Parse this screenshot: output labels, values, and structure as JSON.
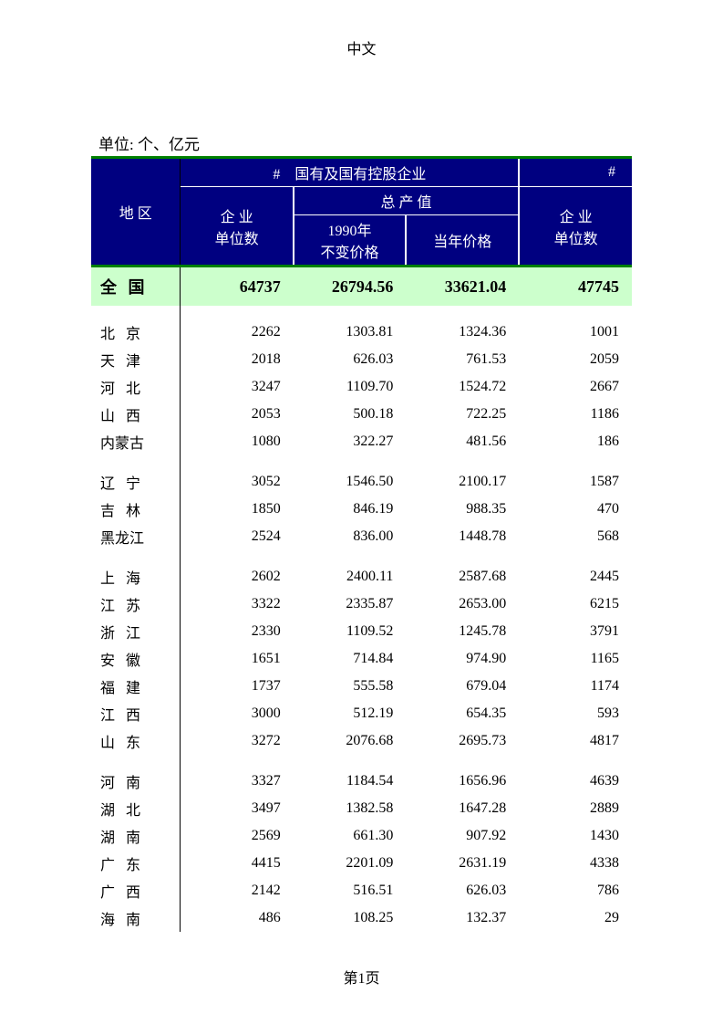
{
  "header": {
    "title": "中文"
  },
  "footer": {
    "pageNum": "第1页"
  },
  "table": {
    "unitLabel": "单位: 个、亿元",
    "colors": {
      "headerBg": "#000080",
      "headerText": "#ffffff",
      "borderGreen": "#008000",
      "totalBg": "#ccffcc"
    },
    "headers": {
      "region": "地  区",
      "groupA_hash": "#",
      "groupA_title": "国有及国有控股企业",
      "groupB_hash": "#",
      "enterprise": "企 业",
      "unitCount": "单位数",
      "totalValue": "总 产 值",
      "price1990": "1990年",
      "pricefixed": "不变价格",
      "priceCurrent": "当年价格"
    },
    "totalRow": {
      "region": "全  国",
      "c1": "64737",
      "c2": "26794.56",
      "c3": "33621.04",
      "c4": "47745"
    },
    "groups": [
      [
        {
          "region": "北  京",
          "c1": "2262",
          "c2": "1303.81",
          "c3": "1324.36",
          "c4": "1001"
        },
        {
          "region": "天  津",
          "c1": "2018",
          "c2": "626.03",
          "c3": "761.53",
          "c4": "2059"
        },
        {
          "region": "河  北",
          "c1": "3247",
          "c2": "1109.70",
          "c3": "1524.72",
          "c4": "2667"
        },
        {
          "region": "山  西",
          "c1": "2053",
          "c2": "500.18",
          "c3": "722.25",
          "c4": "1186"
        },
        {
          "region": "内蒙古",
          "compact": true,
          "c1": "1080",
          "c2": "322.27",
          "c3": "481.56",
          "c4": "186"
        }
      ],
      [
        {
          "region": "辽  宁",
          "c1": "3052",
          "c2": "1546.50",
          "c3": "2100.17",
          "c4": "1587"
        },
        {
          "region": "吉  林",
          "c1": "1850",
          "c2": "846.19",
          "c3": "988.35",
          "c4": "470"
        },
        {
          "region": "黑龙江",
          "compact": true,
          "c1": "2524",
          "c2": "836.00",
          "c3": "1448.78",
          "c4": "568"
        }
      ],
      [
        {
          "region": "上  海",
          "c1": "2602",
          "c2": "2400.11",
          "c3": "2587.68",
          "c4": "2445"
        },
        {
          "region": "江  苏",
          "c1": "3322",
          "c2": "2335.87",
          "c3": "2653.00",
          "c4": "6215"
        },
        {
          "region": "浙  江",
          "c1": "2330",
          "c2": "1109.52",
          "c3": "1245.78",
          "c4": "3791"
        },
        {
          "region": "安  徽",
          "c1": "1651",
          "c2": "714.84",
          "c3": "974.90",
          "c4": "1165"
        },
        {
          "region": "福  建",
          "c1": "1737",
          "c2": "555.58",
          "c3": "679.04",
          "c4": "1174"
        },
        {
          "region": "江  西",
          "c1": "3000",
          "c2": "512.19",
          "c3": "654.35",
          "c4": "593"
        },
        {
          "region": "山  东",
          "c1": "3272",
          "c2": "2076.68",
          "c3": "2695.73",
          "c4": "4817"
        }
      ],
      [
        {
          "region": "河  南",
          "c1": "3327",
          "c2": "1184.54",
          "c3": "1656.96",
          "c4": "4639"
        },
        {
          "region": "湖  北",
          "c1": "3497",
          "c2": "1382.58",
          "c3": "1647.28",
          "c4": "2889"
        },
        {
          "region": "湖  南",
          "c1": "2569",
          "c2": "661.30",
          "c3": "907.92",
          "c4": "1430"
        },
        {
          "region": "广  东",
          "c1": "4415",
          "c2": "2201.09",
          "c3": "2631.19",
          "c4": "4338"
        },
        {
          "region": "广  西",
          "c1": "2142",
          "c2": "516.51",
          "c3": "626.03",
          "c4": "786"
        },
        {
          "region": "海  南",
          "c1": "486",
          "c2": "108.25",
          "c3": "132.37",
          "c4": "29"
        }
      ]
    ]
  }
}
